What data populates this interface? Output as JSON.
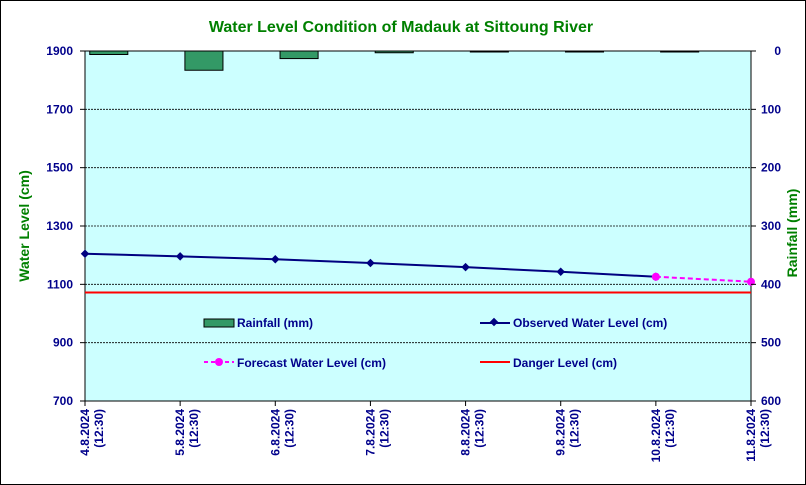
{
  "chart_data": {
    "type": "line",
    "title": "Water Level Condition of Madauk at Sittoung River",
    "ylabel": "Water Level (cm)",
    "y2label": "Rainfall (mm)",
    "ylim": [
      700,
      1900
    ],
    "yticks": [
      700,
      900,
      1100,
      1300,
      1500,
      1700,
      1900
    ],
    "y2lim": [
      0,
      600
    ],
    "y2ticks": [
      0,
      100,
      200,
      300,
      400,
      500,
      600
    ],
    "y2_reversed": true,
    "categories": [
      {
        "date": "4.8.2024",
        "time": "(12:30)"
      },
      {
        "date": "5.8.2024",
        "time": "(12:30)"
      },
      {
        "date": "6.8.2024",
        "time": "(12:30)"
      },
      {
        "date": "7.8.2024",
        "time": "(12:30)"
      },
      {
        "date": "8.8.2024",
        "time": "(12:30)"
      },
      {
        "date": "9.8.2024",
        "time": "(12:30)"
      },
      {
        "date": "10.8.2024",
        "time": "(12:30)"
      },
      {
        "date": "11.8.2024",
        "time": "(12:30)"
      }
    ],
    "rainfall": [
      6,
      33,
      13,
      3,
      0,
      0,
      0
    ],
    "observed": [
      1205,
      1196,
      1186,
      1173,
      1159,
      1143,
      1126,
      null
    ],
    "forecast": [
      null,
      null,
      null,
      null,
      null,
      null,
      1126,
      1109
    ],
    "danger": 1072,
    "grid": true,
    "plot_bg": "#ccffff",
    "colors": {
      "rainfall": "#339966",
      "observed": "#000080",
      "forecast": "#ff00ff",
      "danger": "#ff0000",
      "tick": "#00008b",
      "title": "#008000"
    },
    "legend": {
      "placement": "center",
      "rainfall": "Rainfall (mm)",
      "observed": "Observed Water Level (cm)",
      "forecast": "Forecast Water Level (cm)",
      "danger": "Danger Level (cm)"
    }
  }
}
